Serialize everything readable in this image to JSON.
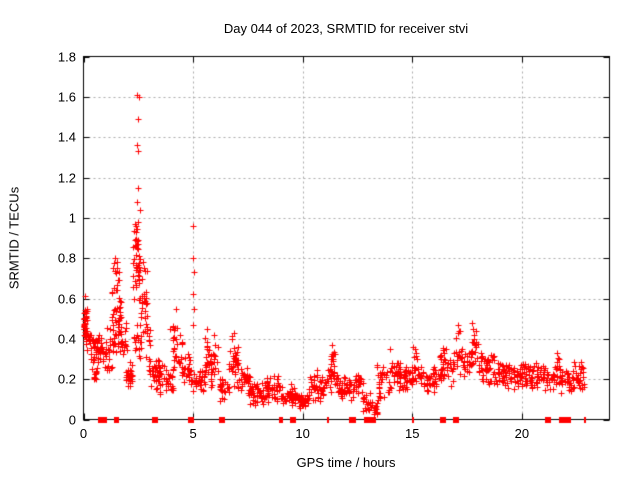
{
  "title": "Day 044 of 2023, SRMTID for receiver stvi",
  "colors": {
    "marker": "#ff0000",
    "grid": "#aaaaaa",
    "frame": "#000000",
    "background": "#ffffff",
    "text": "#000000"
  },
  "chart_data": {
    "type": "scatter",
    "title": "Day 044 of 2023, SRMTID for receiver stvi",
    "xlabel": "GPS time / hours",
    "ylabel": "SRMTID / TECUs",
    "xlim": [
      0,
      24
    ],
    "ylim": [
      0,
      1.8
    ],
    "grid": true,
    "legend": "none",
    "x_ticks": {
      "values": [
        0,
        5,
        10,
        15,
        20
      ],
      "labels": [
        "0",
        "5",
        "10",
        "15",
        "20"
      ]
    },
    "y_ticks": {
      "values": [
        0,
        0.2,
        0.4,
        0.6,
        0.8,
        1.0,
        1.2,
        1.4,
        1.6,
        1.8
      ],
      "labels": [
        "0",
        "0.2",
        "0.4",
        "0.6",
        "0.8",
        "1",
        "1.2",
        "1.4",
        "1.6",
        "1.8"
      ]
    },
    "grid_x_values": [
      5,
      10,
      15,
      20
    ],
    "grid_y_values": [
      0.2,
      0.4,
      0.6,
      0.8,
      1.0,
      1.2,
      1.4,
      1.6
    ],
    "series": [
      {
        "name": "SRMTID",
        "marker": "plus",
        "color": "#ff0000",
        "cluster_format": [
          "x_start_hour",
          "x_end_hour",
          "y_min_tecu",
          "y_max_tecu",
          "point_count"
        ],
        "clusters": [
          [
            0.0,
            0.18,
            0.38,
            0.62,
            28
          ],
          [
            0.05,
            0.35,
            0.3,
            0.48,
            20
          ],
          [
            0.3,
            0.7,
            0.26,
            0.45,
            30
          ],
          [
            0.4,
            0.65,
            0.18,
            0.27,
            12
          ],
          [
            0.7,
            1.0,
            0.28,
            0.42,
            16
          ],
          [
            1.0,
            1.3,
            0.22,
            0.46,
            20
          ],
          [
            1.3,
            1.7,
            0.3,
            0.66,
            46
          ],
          [
            1.35,
            1.62,
            0.62,
            0.8,
            14
          ],
          [
            1.7,
            1.97,
            0.26,
            0.5,
            18
          ],
          [
            1.93,
            2.22,
            0.15,
            0.3,
            26
          ],
          [
            2.28,
            2.62,
            0.48,
            1.06,
            46
          ],
          [
            2.3,
            2.65,
            0.28,
            0.5,
            18
          ],
          [
            2.62,
            2.88,
            0.4,
            0.82,
            22
          ],
          [
            2.85,
            3.05,
            0.25,
            0.55,
            14
          ],
          [
            2.98,
            3.45,
            0.14,
            0.32,
            32
          ],
          [
            3.45,
            4.1,
            0.11,
            0.3,
            32
          ],
          [
            4.1,
            4.5,
            0.2,
            0.52,
            30
          ],
          [
            4.5,
            4.95,
            0.14,
            0.34,
            26
          ],
          [
            4.95,
            5.55,
            0.1,
            0.28,
            30
          ],
          [
            5.55,
            5.75,
            0.16,
            0.45,
            16
          ],
          [
            5.75,
            6.18,
            0.12,
            0.4,
            24
          ],
          [
            6.18,
            6.65,
            0.08,
            0.22,
            26
          ],
          [
            6.65,
            7.05,
            0.14,
            0.43,
            32
          ],
          [
            7.05,
            7.6,
            0.1,
            0.28,
            30
          ],
          [
            7.6,
            8.35,
            0.06,
            0.2,
            44
          ],
          [
            8.35,
            8.95,
            0.08,
            0.26,
            38
          ],
          [
            8.95,
            9.7,
            0.06,
            0.18,
            42
          ],
          [
            9.7,
            10.3,
            0.04,
            0.15,
            38
          ],
          [
            10.3,
            11.05,
            0.08,
            0.26,
            44
          ],
          [
            11.05,
            11.6,
            0.1,
            0.33,
            30
          ],
          [
            11.28,
            11.5,
            0.27,
            0.38,
            8
          ],
          [
            11.6,
            12.35,
            0.09,
            0.22,
            40
          ],
          [
            12.35,
            12.75,
            0.11,
            0.27,
            22
          ],
          [
            12.75,
            13.1,
            0.03,
            0.14,
            18
          ],
          [
            13.1,
            13.4,
            0.01,
            0.1,
            14
          ],
          [
            13.4,
            13.95,
            0.07,
            0.28,
            30
          ],
          [
            13.95,
            14.45,
            0.13,
            0.33,
            30
          ],
          [
            14.45,
            15.0,
            0.13,
            0.3,
            32
          ],
          [
            15.0,
            15.25,
            0.16,
            0.36,
            14
          ],
          [
            15.25,
            16.2,
            0.12,
            0.28,
            48
          ],
          [
            16.2,
            17.0,
            0.16,
            0.38,
            44
          ],
          [
            17.0,
            17.3,
            0.22,
            0.46,
            18
          ],
          [
            17.3,
            17.62,
            0.18,
            0.35,
            20
          ],
          [
            17.62,
            17.98,
            0.22,
            0.47,
            22
          ],
          [
            17.98,
            19.0,
            0.16,
            0.34,
            55
          ],
          [
            19.0,
            20.0,
            0.15,
            0.3,
            55
          ],
          [
            20.0,
            20.7,
            0.14,
            0.3,
            38
          ],
          [
            20.7,
            21.45,
            0.13,
            0.28,
            40
          ],
          [
            21.45,
            21.72,
            0.14,
            0.33,
            16
          ],
          [
            21.72,
            22.4,
            0.12,
            0.27,
            38
          ],
          [
            22.4,
            22.85,
            0.13,
            0.3,
            28
          ]
        ],
        "outlier_points": [
          [
            2.44,
            1.61
          ],
          [
            2.52,
            1.6
          ],
          [
            2.47,
            1.49
          ],
          [
            2.45,
            1.36
          ],
          [
            2.5,
            1.33
          ],
          [
            2.49,
            1.15
          ],
          [
            2.42,
            1.08
          ],
          [
            2.56,
            1.04
          ],
          [
            2.35,
            0.97
          ],
          [
            5.01,
            0.96
          ],
          [
            5.0,
            0.8
          ],
          [
            5.02,
            0.73
          ],
          [
            5.01,
            0.62
          ],
          [
            5.03,
            0.55
          ],
          [
            5.0,
            0.47
          ],
          [
            1.46,
            0.8
          ],
          [
            1.52,
            0.78
          ],
          [
            2.72,
            0.78
          ],
          [
            2.78,
            0.75
          ],
          [
            3.95,
            0.45
          ],
          [
            4.2,
            0.55
          ],
          [
            5.62,
            0.45
          ],
          [
            5.95,
            0.42
          ],
          [
            6.88,
            0.43
          ],
          [
            11.35,
            0.37
          ],
          [
            13.98,
            0.35
          ],
          [
            15.05,
            0.36
          ],
          [
            17.08,
            0.47
          ],
          [
            17.13,
            0.44
          ],
          [
            17.72,
            0.48
          ],
          [
            17.78,
            0.45
          ],
          [
            21.6,
            0.33
          ]
        ]
      },
      {
        "name": "zero-line-markers",
        "marker": "filled-square",
        "color": "#ff0000",
        "y": 0,
        "square_x_hours": [
          0.8,
          0.92,
          3.28,
          4.9,
          6.3,
          9.55,
          12.3,
          12.95,
          13.08,
          13.2,
          16.4,
          17.0,
          21.2,
          21.85,
          22.05
        ],
        "tick_x_hours": [
          1.42,
          1.5,
          1.58,
          8.98,
          9.06,
          11.14,
          12.15,
          12.22,
          15.05,
          22.12,
          22.2,
          22.9
        ]
      }
    ]
  }
}
